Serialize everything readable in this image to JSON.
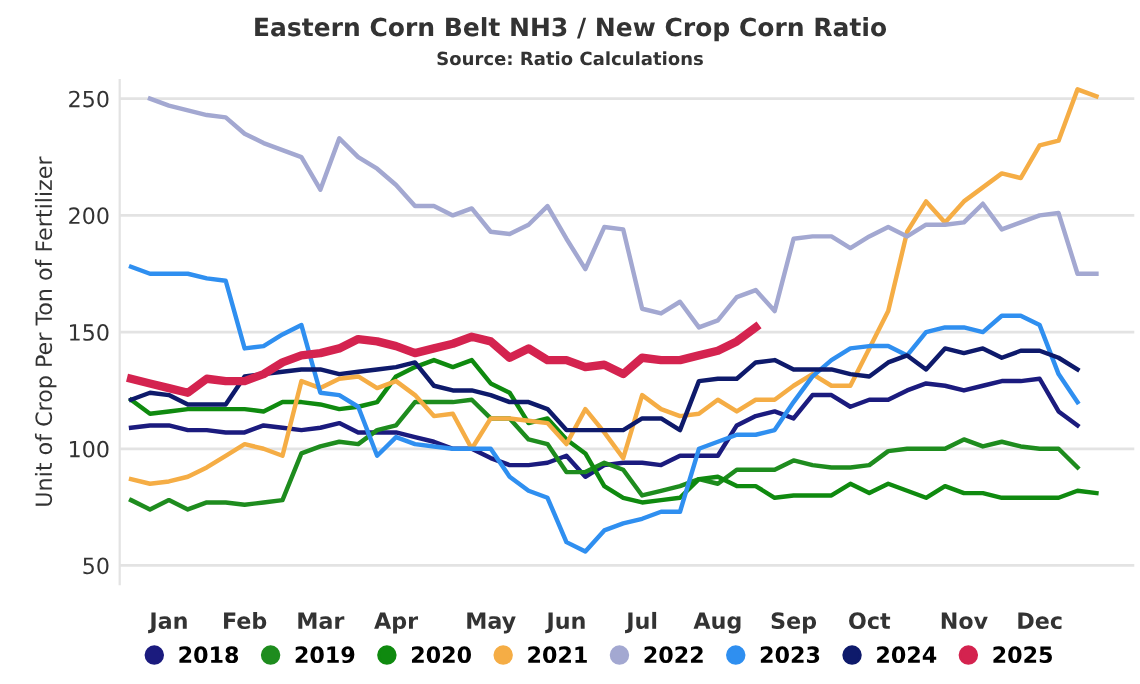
{
  "chart_data": {
    "type": "line",
    "title": "Eastern Corn Belt NH3 / New Crop Corn Ratio",
    "subtitle": "Source: Ratio Calculations",
    "ylabel": "Unit of Crop Per Ton of Fertilizer",
    "categories": [
      null,
      null,
      "Jan",
      null,
      null,
      null,
      "Feb",
      null,
      null,
      null,
      "Mar",
      null,
      null,
      null,
      "Apr",
      null,
      null,
      null,
      null,
      "May",
      null,
      null,
      null,
      "Jun",
      null,
      null,
      null,
      "Jul",
      null,
      null,
      null,
      "Aug",
      null,
      null,
      null,
      "Sep",
      null,
      null,
      null,
      "Oct",
      null,
      null,
      null,
      null,
      "Nov",
      null,
      null,
      null,
      "Dec",
      null,
      null,
      null
    ],
    "ylim": [
      42,
      258
    ],
    "yticks": [
      50,
      100,
      150,
      200,
      250
    ],
    "grid": "y",
    "legend": "bottom",
    "series": [
      {
        "name": "2018",
        "color": "#1b1b7e",
        "values": [
          109,
          110,
          110,
          108,
          108,
          107,
          107,
          110,
          109,
          108,
          109,
          111,
          107,
          107,
          107,
          105,
          103,
          100,
          100,
          96,
          93,
          93,
          94,
          97,
          88,
          93,
          94,
          94,
          93,
          97,
          97,
          97,
          110,
          114,
          116,
          113,
          123,
          123,
          118,
          121,
          121,
          125,
          128,
          127,
          125,
          127,
          129,
          129,
          130,
          116,
          110,
          null
        ]
      },
      {
        "name": "2019",
        "color": "#1e8c1e",
        "values": [
          78,
          74,
          78,
          74,
          77,
          77,
          76,
          77,
          78,
          98,
          101,
          103,
          102,
          108,
          110,
          120,
          120,
          120,
          121,
          113,
          113,
          104,
          102,
          90,
          90,
          94,
          91,
          80,
          82,
          84,
          87,
          85,
          91,
          91,
          91,
          95,
          93,
          92,
          92,
          93,
          99,
          100,
          100,
          100,
          104,
          101,
          103,
          101,
          100,
          100,
          92,
          null
        ]
      },
      {
        "name": "2020",
        "color": "#0f8a0f",
        "values": [
          121,
          115,
          116,
          117,
          117,
          117,
          117,
          116,
          120,
          120,
          119,
          117,
          118,
          120,
          131,
          135,
          138,
          135,
          138,
          128,
          124,
          111,
          113,
          104,
          98,
          84,
          79,
          77,
          78,
          79,
          87,
          88,
          84,
          84,
          79,
          80,
          80,
          80,
          85,
          81,
          85,
          82,
          79,
          84,
          81,
          81,
          79,
          79,
          79,
          79,
          82,
          81
        ]
      },
      {
        "name": "2021",
        "color": "#f5ad45",
        "values": [
          87,
          85,
          86,
          88,
          92,
          97,
          102,
          100,
          97,
          129,
          126,
          130,
          131,
          126,
          129,
          123,
          114,
          115,
          100,
          113,
          113,
          112,
          111,
          102,
          117,
          107,
          96,
          123,
          117,
          114,
          115,
          121,
          116,
          121,
          121,
          127,
          132,
          127,
          127,
          143,
          159,
          193,
          206,
          197,
          206,
          212,
          218,
          216,
          230,
          232,
          254,
          251
        ]
      },
      {
        "name": "2022",
        "color": "#a3a8d1",
        "values": [
          null,
          250,
          247,
          245,
          243,
          242,
          235,
          231,
          228,
          225,
          211,
          233,
          225,
          220,
          213,
          204,
          204,
          200,
          203,
          193,
          192,
          196,
          204,
          190,
          177,
          195,
          194,
          160,
          158,
          163,
          152,
          155,
          165,
          168,
          159,
          190,
          191,
          191,
          186,
          191,
          195,
          191,
          196,
          196,
          197,
          205,
          194,
          197,
          200,
          201,
          175,
          175
        ]
      },
      {
        "name": "2023",
        "color": "#2f8ff0",
        "values": [
          178,
          175,
          175,
          175,
          173,
          172,
          143,
          144,
          149,
          153,
          124,
          123,
          118,
          97,
          105,
          102,
          101,
          100,
          100,
          100,
          88,
          82,
          79,
          60,
          56,
          65,
          68,
          70,
          73,
          73,
          100,
          103,
          106,
          106,
          108,
          120,
          131,
          138,
          143,
          144,
          144,
          140,
          150,
          152,
          152,
          150,
          157,
          157,
          153,
          132,
          120,
          null
        ]
      },
      {
        "name": "2024",
        "color": "#0e1a6b",
        "values": [
          121,
          124,
          123,
          119,
          119,
          119,
          131,
          132,
          133,
          134,
          134,
          132,
          133,
          134,
          135,
          137,
          127,
          125,
          125,
          123,
          120,
          120,
          117,
          108,
          108,
          108,
          108,
          113,
          113,
          108,
          129,
          130,
          130,
          137,
          138,
          134,
          134,
          134,
          132,
          131,
          137,
          140,
          134,
          143,
          141,
          143,
          139,
          142,
          142,
          139,
          134,
          null
        ]
      },
      {
        "name": "2025",
        "color": "#d4234f",
        "values": [
          130,
          128,
          126,
          124,
          130,
          129,
          129,
          132,
          137,
          140,
          141,
          143,
          147,
          146,
          144,
          141,
          143,
          145,
          148,
          146,
          139,
          143,
          138,
          138,
          135,
          136,
          132,
          139,
          138,
          138,
          140,
          142,
          146,
          152,
          null,
          null,
          null,
          null,
          null,
          null,
          null,
          null,
          null,
          null,
          null,
          null,
          null,
          null,
          null,
          null,
          null,
          null
        ]
      }
    ]
  }
}
